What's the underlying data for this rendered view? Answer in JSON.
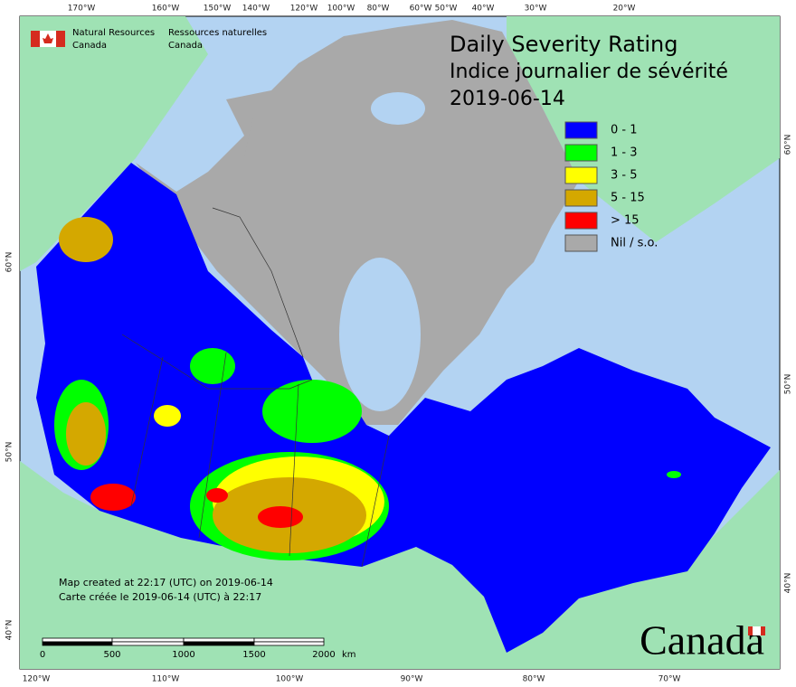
{
  "header": {
    "title": [
      "Daily Severity Rating",
      "Indice journalier de sévérité",
      "2019-06-14"
    ],
    "agency": {
      "en": [
        "Natural Resources",
        "Canada"
      ],
      "fr": [
        "Ressources naturelles",
        "Canada"
      ]
    }
  },
  "legend": [
    {
      "label": "0 - 1",
      "color": "#0000ff"
    },
    {
      "label": "1 - 3",
      "color": "#00ff00"
    },
    {
      "label": "3 - 5",
      "color": "#ffff00"
    },
    {
      "label": "5 - 15",
      "color": "#d4a800"
    },
    {
      "label": "> 15",
      "color": "#ff0000"
    },
    {
      "label": "Nil / s.o.",
      "color": "#a9a9a9"
    }
  ],
  "notes": [
    "Map created at 22:17 (UTC) on 2019-06-14",
    "Carte créée le 2019-06-14 (UTC) à 22:17"
  ],
  "scale_bar": {
    "labels": [
      "0",
      "500",
      "1000",
      "1500",
      "2000"
    ],
    "unit": "km"
  },
  "graticule": {
    "top": [
      "170°W",
      "160°W",
      "150°W",
      "140°W",
      "120°W",
      "100°W",
      "80°W",
      "60°W",
      "50°W",
      "40°W",
      "30°W",
      "20°W"
    ],
    "bottom": [
      "120°W",
      "110°W",
      "100°W",
      "90°W",
      "80°W",
      "70°W"
    ],
    "left": [
      "60°N",
      "50°N",
      "40°N"
    ],
    "right": [
      "60°N",
      "50°N",
      "40°N"
    ]
  },
  "wordmark": "Canada"
}
